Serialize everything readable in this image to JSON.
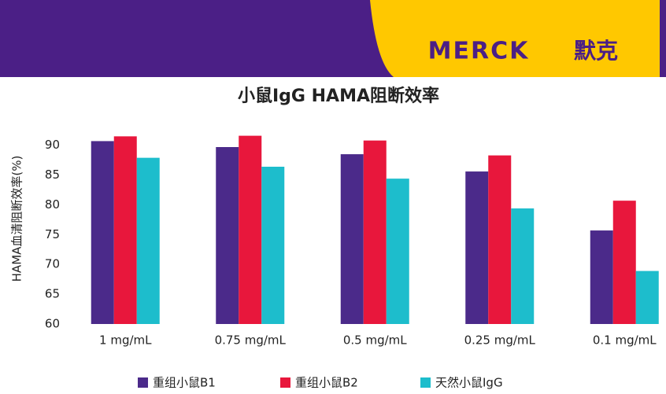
{
  "header": {
    "logo": "MERCK",
    "logo_cn": "默克"
  },
  "chart_data": {
    "type": "bar",
    "title": "小鼠IgG HAMA阻断效率",
    "y_label": "HAMA血清阻断效率(%)",
    "categories": [
      "1 mg/mL",
      "0.75 mg/mL",
      "0.5 mg/mL",
      "0.25 mg/mL",
      "0.1 mg/mL"
    ],
    "series": [
      {
        "name": "重组小鼠B1",
        "color": "#4b2a8a",
        "values": [
          90.7,
          89.7,
          88.5,
          85.6,
          75.7
        ]
      },
      {
        "name": "重组小鼠B2",
        "color": "#e8173c",
        "values": [
          91.5,
          91.6,
          90.8,
          88.3,
          80.7
        ]
      },
      {
        "name": "天然小鼠IgG",
        "color": "#1dbdcc",
        "values": [
          87.9,
          86.4,
          84.4,
          79.4,
          68.9
        ]
      }
    ],
    "ylim": [
      60,
      93
    ],
    "yticks": [
      60,
      65,
      70,
      75,
      80,
      85,
      90
    ],
    "grid": false
  }
}
